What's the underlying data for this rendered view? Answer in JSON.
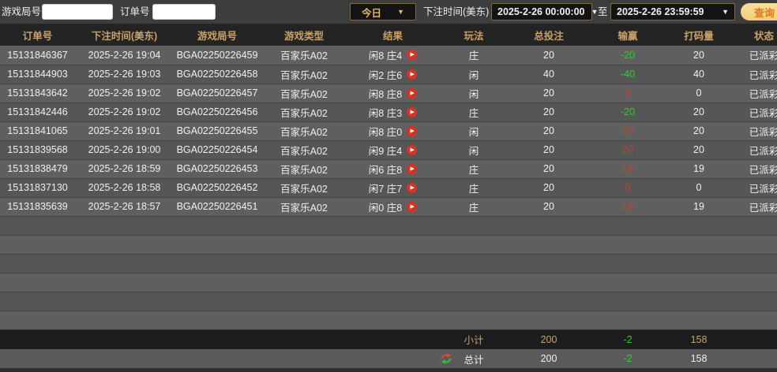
{
  "icons": {
    "dropdown": "▼",
    "play": "▶"
  },
  "colors": {
    "accent_gold": "#c8a268",
    "win_red": "#c4412e",
    "loss_green": "#28d228",
    "search_button_bg": "#f5d689",
    "search_button_text": "#e0791f"
  },
  "filters": {
    "game_round_label": "游戏局号",
    "order_no_label": "订单号",
    "quick_range_value": "今日",
    "bet_time_label": "下注时间(美东)",
    "date_from": "2025-2-26 00:00:00",
    "to_label": "至",
    "date_to": "2025-2-26 23:59:59",
    "search_label": "查询",
    "game_round_value": "",
    "order_no_value": ""
  },
  "table": {
    "columns": [
      "订单号",
      "下注时间(美东)",
      "游戏局号",
      "游戏类型",
      "结果",
      "玩法",
      "总投注",
      "输赢",
      "打码量",
      "状态"
    ],
    "rows": [
      {
        "order": "15131846367",
        "time": "2025-2-26 19:04",
        "round": "BGA02250226459",
        "game": "百家乐A02",
        "result": "闲8 庄4",
        "play": "庄",
        "bet": "20",
        "winloss": "-20",
        "wl_color": "green",
        "turnover": "20",
        "status": "已派彩"
      },
      {
        "order": "15131844903",
        "time": "2025-2-26 19:03",
        "round": "BGA02250226458",
        "game": "百家乐A02",
        "result": "闲2 庄6",
        "play": "闲",
        "bet": "40",
        "winloss": "-40",
        "wl_color": "green",
        "turnover": "40",
        "status": "已派彩"
      },
      {
        "order": "15131843642",
        "time": "2025-2-26 19:02",
        "round": "BGA02250226457",
        "game": "百家乐A02",
        "result": "闲8 庄8",
        "play": "闲",
        "bet": "20",
        "winloss": "0",
        "wl_color": "red",
        "turnover": "0",
        "status": "已派彩"
      },
      {
        "order": "15131842446",
        "time": "2025-2-26 19:02",
        "round": "BGA02250226456",
        "game": "百家乐A02",
        "result": "闲8 庄3",
        "play": "庄",
        "bet": "20",
        "winloss": "-20",
        "wl_color": "green",
        "turnover": "20",
        "status": "已派彩"
      },
      {
        "order": "15131841065",
        "time": "2025-2-26 19:01",
        "round": "BGA02250226455",
        "game": "百家乐A02",
        "result": "闲8 庄0",
        "play": "闲",
        "bet": "20",
        "winloss": "20",
        "wl_color": "red",
        "turnover": "20",
        "status": "已派彩"
      },
      {
        "order": "15131839568",
        "time": "2025-2-26 19:00",
        "round": "BGA02250226454",
        "game": "百家乐A02",
        "result": "闲9 庄4",
        "play": "闲",
        "bet": "20",
        "winloss": "20",
        "wl_color": "red",
        "turnover": "20",
        "status": "已派彩"
      },
      {
        "order": "15131838479",
        "time": "2025-2-26 18:59",
        "round": "BGA02250226453",
        "game": "百家乐A02",
        "result": "闲6 庄8",
        "play": "庄",
        "bet": "20",
        "winloss": "19",
        "wl_color": "red",
        "turnover": "19",
        "status": "已派彩"
      },
      {
        "order": "15131837130",
        "time": "2025-2-26 18:58",
        "round": "BGA02250226452",
        "game": "百家乐A02",
        "result": "闲7 庄7",
        "play": "庄",
        "bet": "20",
        "winloss": "0",
        "wl_color": "red",
        "turnover": "0",
        "status": "已派彩"
      },
      {
        "order": "15131835639",
        "time": "2025-2-26 18:57",
        "round": "BGA02250226451",
        "game": "百家乐A02",
        "result": "闲0 庄8",
        "play": "庄",
        "bet": "20",
        "winloss": "19",
        "wl_color": "red",
        "turnover": "19",
        "status": "已派彩"
      }
    ],
    "subtotal": {
      "label": "小计",
      "bet": "200",
      "winloss": "-2",
      "turnover": "158"
    },
    "total": {
      "label": "总计",
      "bet": "200",
      "winloss": "-2",
      "turnover": "158"
    }
  }
}
